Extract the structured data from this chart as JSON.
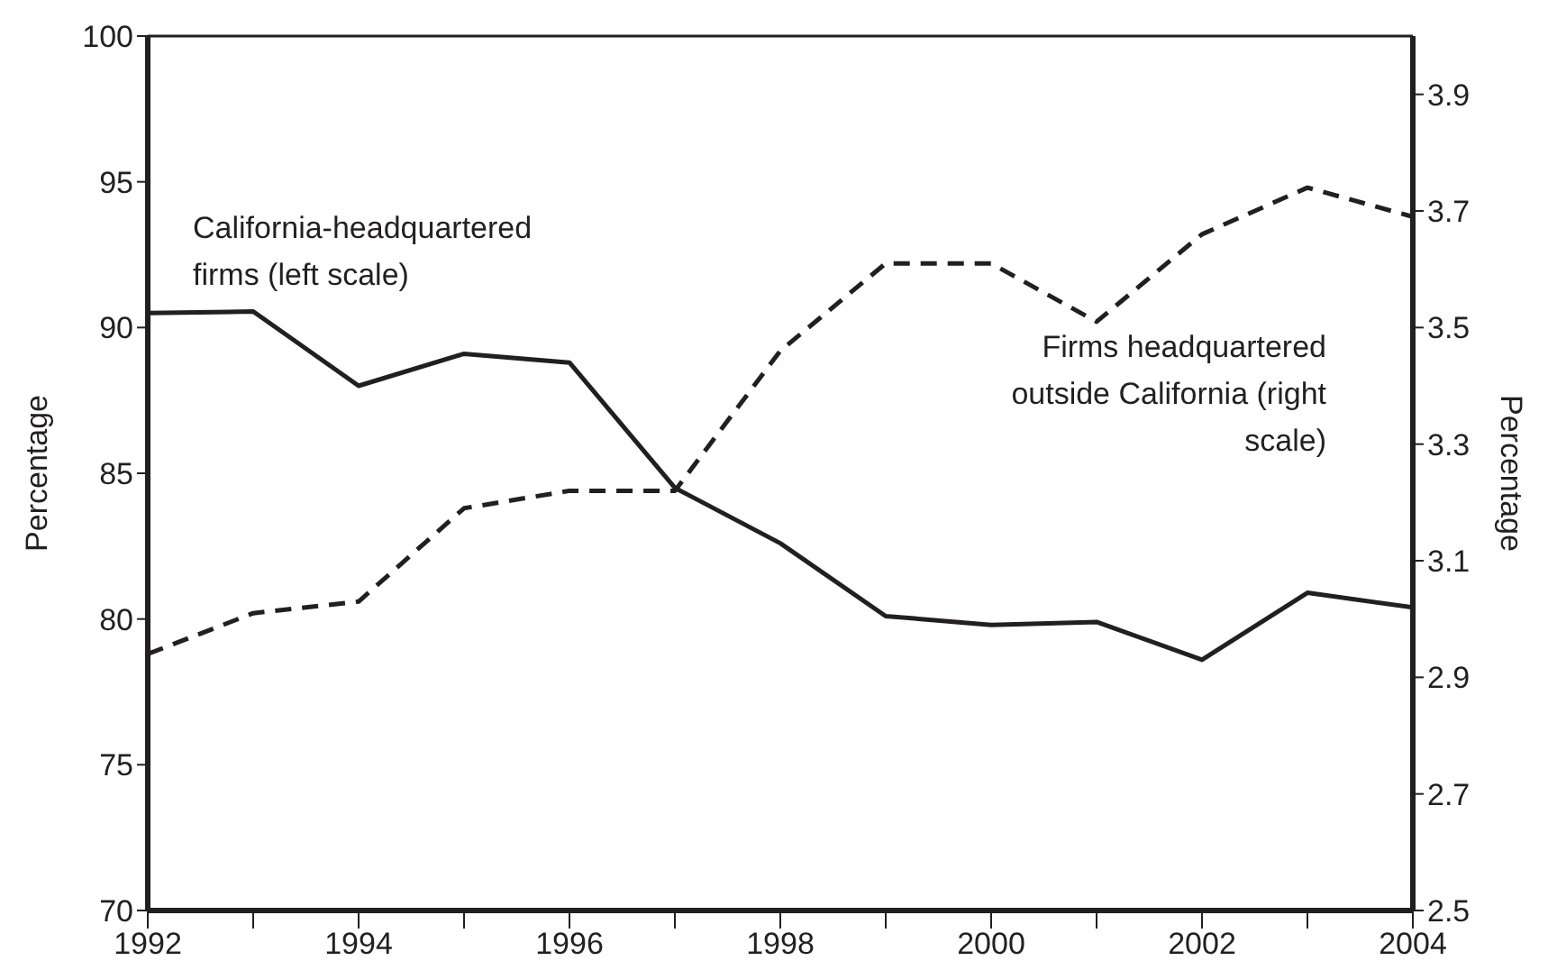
{
  "chart_data": {
    "type": "line",
    "x": [
      1992,
      1993,
      1994,
      1995,
      1996,
      1997,
      1998,
      1999,
      2000,
      2001,
      2002,
      2003,
      2004
    ],
    "xlim": [
      1992,
      2004
    ],
    "xticks": [
      1992,
      {
        "value": 1993,
        "label": null
      },
      1994,
      {
        "value": 1995,
        "label": null
      },
      1996,
      {
        "value": 1997,
        "label": null
      },
      1998,
      {
        "value": 1999,
        "label": null
      },
      2000,
      {
        "value": 2001,
        "label": null
      },
      2002,
      {
        "value": 2003,
        "label": null
      },
      2004
    ],
    "ylabel": "Percentage",
    "y2label": "Percentage",
    "ylim": [
      70,
      100
    ],
    "yticks": [
      70,
      75,
      80,
      85,
      90,
      95,
      100
    ],
    "y2lim": [
      2.5,
      4.0
    ],
    "y2ticks": [
      2.5,
      2.7,
      2.9,
      3.1,
      3.3,
      3.5,
      3.7,
      3.9
    ],
    "marker": "none",
    "series": [
      {
        "name": "California-headquartered firms (left scale)",
        "color": "#231f20",
        "line_style": "solid",
        "values": [
          90.5,
          90.55,
          88.0,
          89.1,
          88.8,
          84.5,
          82.6,
          80.1,
          79.8,
          79.9,
          78.6,
          80.9,
          80.4
        ]
      },
      {
        "name": "Firms headquartered outside California (right scale)",
        "color": "#231f20",
        "line_style": "dashed",
        "axis": "y2",
        "values": [
          2.94,
          3.01,
          3.03,
          3.19,
          3.22,
          3.22,
          3.46,
          3.61,
          3.61,
          3.51,
          3.66,
          3.74,
          3.69
        ]
      }
    ]
  }
}
